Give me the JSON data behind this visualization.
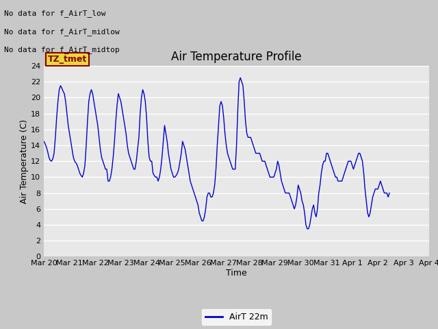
{
  "title": "Air Temperature Profile",
  "xlabel": "Time",
  "ylabel": "Air Temperature (C)",
  "legend_label": "AirT 22m",
  "ylim": [
    0,
    24
  ],
  "yticks": [
    0,
    2,
    4,
    6,
    8,
    10,
    12,
    14,
    16,
    18,
    20,
    22,
    24
  ],
  "xtick_labels": [
    "Mar 20",
    "Mar 21",
    "Mar 22",
    "Mar 23",
    "Mar 24",
    "Mar 25",
    "Mar 26",
    "Mar 27",
    "Mar 28",
    "Mar 29",
    "Mar 30",
    "Mar 31",
    "Apr 1",
    "Apr 2",
    "Apr 3",
    "Apr 4"
  ],
  "annotations": [
    "No data for f_AirT_low",
    "No data for f_AirT_midlow",
    "No data for f_AirT_midtop"
  ],
  "legend_box_label": "TZ_tmet",
  "line_color": "#0000cc",
  "fig_bg_color": "#c8c8c8",
  "plot_bg_color": "#e8e8e8",
  "title_fontsize": 12,
  "axis_label_fontsize": 9,
  "tick_fontsize": 8,
  "annotation_fontsize": 8,
  "x_values": [
    0,
    0.25,
    0.5,
    0.75,
    1,
    1.25,
    1.5,
    1.75,
    2,
    2.25,
    2.5,
    2.75,
    3,
    3.25,
    3.5,
    3.75,
    4,
    4.25,
    4.5,
    4.75,
    5,
    5.25,
    5.5,
    5.75,
    6,
    6.25,
    6.5,
    6.75,
    7,
    7.25,
    7.5,
    7.75,
    8,
    8.25,
    8.5,
    8.75,
    9,
    9.25,
    9.5,
    9.75,
    10,
    10.25,
    10.5,
    10.75,
    11,
    11.25,
    11.5,
    11.75,
    12,
    12.25,
    12.5,
    12.75,
    13,
    13.25,
    13.5,
    13.75,
    14,
    14.25,
    14.5,
    14.75,
    15,
    15.25,
    15.5,
    15.75,
    16,
    16.25,
    16.5,
    16.75,
    17,
    17.25,
    17.5,
    17.75,
    18,
    18.25,
    18.5,
    18.75,
    19,
    19.25,
    19.5,
    19.75,
    20,
    20.25,
    20.5,
    20.75,
    21,
    21.25,
    21.5,
    21.75,
    22,
    22.25,
    22.5,
    22.75,
    23,
    23.25,
    23.5,
    23.75,
    24,
    24.25,
    24.5,
    24.75,
    25,
    25.25,
    25.5,
    25.75,
    26,
    26.25,
    26.5,
    26.75,
    27,
    27.25,
    27.5,
    27.75,
    28,
    28.25,
    28.5,
    28.75,
    29,
    29.25,
    29.5,
    29.75,
    30,
    30.25,
    30.5,
    30.75,
    31,
    31.25,
    31.5,
    31.75,
    32,
    32.25,
    32.5,
    32.75,
    33,
    33.25,
    33.5,
    33.75,
    34,
    34.25,
    34.5,
    34.75,
    35,
    35.25,
    35.5,
    35.75,
    36,
    36.25,
    36.5,
    36.75,
    37,
    37.25,
    37.5,
    37.75,
    38,
    38.25,
    38.5,
    38.75,
    39,
    39.25,
    39.5,
    39.75,
    40,
    40.25,
    40.5,
    40.75,
    41,
    41.25,
    41.5,
    41.75,
    42,
    42.25,
    42.5,
    42.75,
    43,
    43.25,
    43.5,
    43.75,
    44,
    44.25,
    44.5,
    44.75,
    45,
    45.25,
    45.5,
    45.75,
    46,
    46.25,
    46.5,
    46.75,
    47,
    47.25,
    47.5,
    47.75,
    48,
    48.25,
    48.5,
    48.75,
    49,
    49.25,
    49.5,
    49.75,
    50,
    50.25,
    50.5,
    50.75,
    51,
    51.25,
    51.5,
    51.75,
    52,
    52.25,
    52.5,
    52.75,
    53,
    53.25,
    53.5,
    53.75,
    54,
    54.25,
    54.5,
    54.75,
    55,
    55.25,
    55.5,
    55.75,
    56,
    56.25,
    56.5,
    56.75,
    57,
    57.25,
    57.5,
    57.75,
    58,
    58.25,
    58.5,
    58.75,
    59,
    59.25,
    59.5,
    59.75,
    60,
    60.25,
    60.5,
    60.75,
    61,
    61.25,
    61.5,
    61.75,
    62,
    62.25,
    62.5,
    62.75,
    63,
    63.25,
    63.5,
    63.75,
    64,
    64.25,
    64.5,
    64.75,
    65,
    65.25,
    65.5,
    65.75,
    66,
    66.25,
    66.5,
    66.75,
    67,
    67.25,
    67.5,
    67.75,
    68,
    68.25,
    68.5,
    68.75,
    69,
    69.25,
    69.5,
    69.75,
    70,
    70.25,
    70.5,
    70.75,
    71,
    71.25,
    71.5,
    71.75,
    72,
    72.25,
    72.5,
    72.75,
    73,
    73.25,
    73.5,
    73.75,
    74,
    74.25,
    74.5,
    74.75,
    75
  ],
  "y_values": [
    14.5,
    14.2,
    13.8,
    13.2,
    12.5,
    12.1,
    12.0,
    12.3,
    13.0,
    15.0,
    17.5,
    19.5,
    21.0,
    21.5,
    21.2,
    20.8,
    20.5,
    19.5,
    18.0,
    16.5,
    15.5,
    14.5,
    13.5,
    12.5,
    12.0,
    11.8,
    11.5,
    11.0,
    10.5,
    10.2,
    10.0,
    10.5,
    11.5,
    14.0,
    17.0,
    19.5,
    20.5,
    21.0,
    20.5,
    19.5,
    18.5,
    17.5,
    16.5,
    15.0,
    13.5,
    12.5,
    12.0,
    11.5,
    11.0,
    11.0,
    9.5,
    9.5,
    10.0,
    11.0,
    12.5,
    14.5,
    17.0,
    19.0,
    20.5,
    20.0,
    19.5,
    18.5,
    17.5,
    16.5,
    15.5,
    14.0,
    13.0,
    12.5,
    12.0,
    11.5,
    11.0,
    11.0,
    12.0,
    13.5,
    15.0,
    18.0,
    20.0,
    21.0,
    20.5,
    19.5,
    17.5,
    14.5,
    12.5,
    12.0,
    12.0,
    10.5,
    10.2,
    10.0,
    10.0,
    9.5,
    10.0,
    11.0,
    12.5,
    14.5,
    16.5,
    15.5,
    14.5,
    13.0,
    12.0,
    11.0,
    10.5,
    10.0,
    10.0,
    10.2,
    10.5,
    11.0,
    12.0,
    13.0,
    14.5,
    14.0,
    13.5,
    12.5,
    11.5,
    10.5,
    9.5,
    9.0,
    8.5,
    8.0,
    7.5,
    7.0,
    6.5,
    5.5,
    5.0,
    4.5,
    4.5,
    5.0,
    6.0,
    7.5,
    8.0,
    8.0,
    7.5,
    7.5,
    8.0,
    9.0,
    11.0,
    14.0,
    16.5,
    19.0,
    19.5,
    19.0,
    17.5,
    15.5,
    14.0,
    13.0,
    12.5,
    12.0,
    11.5,
    11.0,
    11.0,
    11.0,
    14.0,
    18.5,
    22.0,
    22.5,
    22.0,
    21.5,
    19.5,
    17.0,
    15.5,
    15.0,
    15.0,
    15.0,
    14.5,
    14.0,
    13.5,
    13.0,
    13.0,
    13.0,
    13.0,
    12.5,
    12.0,
    12.0,
    12.0,
    11.5,
    11.0,
    10.5,
    10.0,
    10.0,
    10.0,
    10.0,
    10.5,
    11.0,
    12.0,
    11.5,
    10.5,
    9.5,
    9.0,
    8.5,
    8.0,
    8.0,
    8.0,
    8.0,
    7.5,
    7.0,
    6.5,
    6.0,
    6.5,
    7.5,
    9.0,
    8.5,
    8.0,
    7.0,
    6.5,
    5.5,
    4.0,
    3.5,
    3.5,
    4.0,
    5.0,
    6.0,
    6.5,
    5.5,
    5.0,
    6.0,
    8.0,
    9.0,
    10.5,
    11.5,
    12.0,
    12.0,
    13.0,
    13.0,
    12.5,
    12.0,
    11.5,
    11.0,
    10.5,
    10.0,
    10.0,
    9.5,
    9.5,
    9.5,
    9.5,
    10.0,
    10.5,
    11.0,
    11.5,
    12.0,
    12.0,
    12.0,
    11.5,
    11.0,
    11.5,
    12.0,
    12.5,
    13.0,
    13.0,
    12.5,
    12.0,
    10.5,
    8.5,
    7.0,
    5.5,
    5.0,
    5.5,
    6.5,
    7.5,
    8.0,
    8.5,
    8.5,
    8.5,
    9.0,
    9.5,
    9.0,
    8.5,
    8.0,
    8.0,
    8.0,
    7.5,
    8.0
  ]
}
